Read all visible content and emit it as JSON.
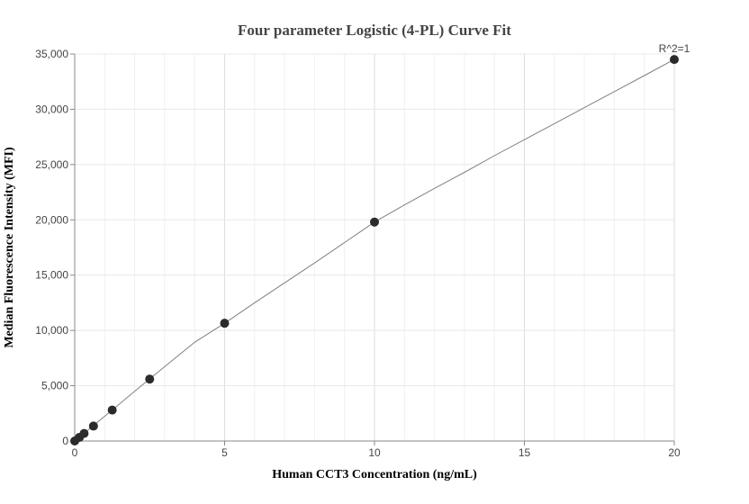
{
  "chart_data": {
    "type": "scatter",
    "title": "Four parameter Logistic (4-PL) Curve Fit",
    "xlabel": "Human CCT3 Concentration (ng/mL)",
    "ylabel": "Median Fluorescence Intensity (MFI)",
    "xlim": [
      0,
      20
    ],
    "ylim": [
      0,
      35000
    ],
    "x_ticks": [
      0,
      5,
      10,
      15,
      20
    ],
    "x_tick_labels": [
      "0",
      "5",
      "10",
      "15",
      "20"
    ],
    "y_ticks": [
      0,
      5000,
      10000,
      15000,
      20000,
      25000,
      30000,
      35000
    ],
    "y_tick_labels": [
      "0",
      "5,000",
      "10,000",
      "15,000",
      "20,000",
      "25,000",
      "30,000",
      "35,000"
    ],
    "grid": true,
    "annotation": "R^2=1",
    "series": [
      {
        "points": [
          {
            "x": 0,
            "y": 0
          },
          {
            "x": 0.156,
            "y": 330
          },
          {
            "x": 0.313,
            "y": 680
          },
          {
            "x": 0.625,
            "y": 1350
          },
          {
            "x": 1.25,
            "y": 2800
          },
          {
            "x": 2.5,
            "y": 5600
          },
          {
            "x": 5,
            "y": 10650
          },
          {
            "x": 10,
            "y": 19800
          },
          {
            "x": 20,
            "y": 34500
          }
        ],
        "fit_curve": [
          [
            0,
            0
          ],
          [
            0.5,
            1120
          ],
          [
            1,
            2240
          ],
          [
            2,
            4490
          ],
          [
            3,
            6720
          ],
          [
            4,
            8930
          ],
          [
            5,
            10650
          ],
          [
            6,
            12500
          ],
          [
            7,
            14300
          ],
          [
            8,
            16100
          ],
          [
            9,
            17950
          ],
          [
            10,
            19800
          ],
          [
            11,
            21350
          ],
          [
            12,
            22850
          ],
          [
            13,
            24300
          ],
          [
            14,
            25800
          ],
          [
            15,
            27250
          ],
          [
            16,
            28700
          ],
          [
            17,
            30150
          ],
          [
            18,
            31600
          ],
          [
            19,
            33050
          ],
          [
            20,
            34500
          ]
        ]
      }
    ],
    "colors": {
      "point": "#2b2b2b",
      "curve": "#808080",
      "grid": "#e8e8e8",
      "axis": "#888888"
    }
  }
}
